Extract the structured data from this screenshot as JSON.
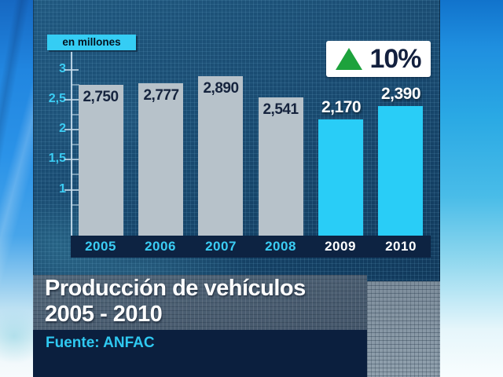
{
  "chart_data": {
    "type": "bar",
    "title_line1": "Producción de vehículos",
    "title_line2": "2005 - 2010",
    "unit_label": "en millones",
    "source": "Fuente: ANFAC",
    "change_badge": {
      "direction": "up",
      "label": "10%",
      "triangle_color": "#1da23c"
    },
    "categories": [
      "2005",
      "2006",
      "2007",
      "2008",
      "2009",
      "2010"
    ],
    "values": [
      2.75,
      2.777,
      2.89,
      2.541,
      2.17,
      2.39
    ],
    "value_labels": [
      "2,750",
      "2,777",
      "2,890",
      "2,541",
      "2,170",
      "2,390"
    ],
    "highlighted": [
      false,
      false,
      false,
      false,
      true,
      true
    ],
    "ylim": [
      0,
      3
    ],
    "yticks_major": [
      {
        "v": 3,
        "label": "3"
      },
      {
        "v": 2.5,
        "label": "2,5"
      },
      {
        "v": 2,
        "label": "2"
      },
      {
        "v": 1.5,
        "label": "1,5"
      },
      {
        "v": 1,
        "label": "1"
      }
    ],
    "yticks_minor": [
      2.75,
      2.25,
      1.75,
      1.25,
      0.75
    ],
    "legend_position": "none",
    "grid": true,
    "colors": {
      "bar": "#b7c2ca",
      "bar_highlight": "#29cdf7",
      "axis_text": "#3bcdf4",
      "bar_label_dark": "#16243e",
      "bar_label_light": "#ffffff",
      "year_text": "#3bcdf4",
      "year_text_highlight": "#ffffff",
      "badge_text": "#13203e",
      "badge_green": "#1da23c",
      "unit_chip_bg": "#35cdf4",
      "source_text": "#2fc9f1"
    }
  }
}
